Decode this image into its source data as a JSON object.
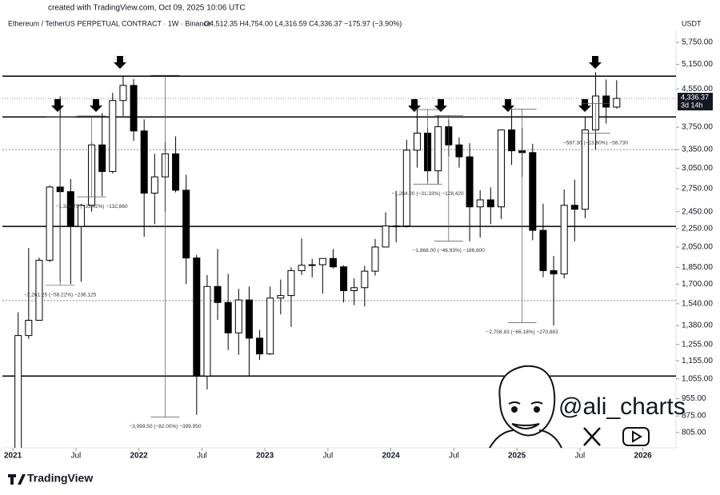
{
  "created": "created with TradingView.com, Oct 09, 2025 10:06 UTC",
  "symbol": "Ethereum / TetherUS PERPETUAL CONTRACT · 1W · Binance",
  "ohlc_header": "O4,512.35 H4,754.00 L4,316.59 C4,336.37 −175.97 (−3.90%)",
  "currency": "USDT",
  "price_tag": "4,336.37",
  "countdown": "3d 14h",
  "handle": "@ali_charts",
  "brand": "TradingView",
  "chart_data": {
    "type": "candlestick",
    "log_scale": true,
    "up_color": "#ffffff",
    "down_color": "#000000",
    "x": [
      "2021-01",
      "2021-02",
      "2021-03",
      "2021-04",
      "2021-05",
      "2021-06",
      "2021-07",
      "2021-08",
      "2021-09",
      "2021-10",
      "2021-11",
      "2021-12",
      "2022-01",
      "2022-02",
      "2022-03",
      "2022-04",
      "2022-05",
      "2022-06",
      "2022-07",
      "2022-08",
      "2022-09",
      "2022-10",
      "2022-11",
      "2022-12",
      "2023-01",
      "2023-02",
      "2023-03",
      "2023-04",
      "2023-05",
      "2023-06",
      "2023-07",
      "2023-08",
      "2023-09",
      "2023-10",
      "2023-11",
      "2023-12",
      "2024-01",
      "2024-02",
      "2024-03",
      "2024-04",
      "2024-05",
      "2024-06",
      "2024-07",
      "2024-08",
      "2024-09",
      "2024-10",
      "2024-11",
      "2024-12",
      "2025-01",
      "2025-02",
      "2025-03",
      "2025-04",
      "2025-05",
      "2025-06",
      "2025-07",
      "2025-08",
      "2025-09",
      "2025-10"
    ],
    "open": [
      737,
      1312,
      1417,
      1918,
      2774,
      2710,
      2275,
      2530,
      3430,
      3000,
      4290,
      4630,
      3680,
      2690,
      2920,
      3280,
      2730,
      1940,
      1070,
      1680,
      1550,
      1330,
      1570,
      1295,
      1196,
      1585,
      1605,
      1820,
      1870,
      1875,
      1935,
      1855,
      1645,
      1670,
      1815,
      2050,
      2280,
      2280,
      3340,
      3640,
      3010,
      3760,
      3430,
      3230,
      2510,
      2600,
      2510,
      3700,
      3330,
      3300,
      2230,
      1820,
      1790,
      2530,
      2480,
      3700,
      4390,
      4150
    ],
    "high": [
      1475,
      2040,
      1943,
      2797,
      4380,
      2890,
      2550,
      3470,
      4030,
      4460,
      4870,
      4780,
      3900,
      3280,
      3480,
      3580,
      2950,
      1970,
      1780,
      2030,
      1790,
      1660,
      1680,
      1350,
      1680,
      1740,
      1850,
      2140,
      1930,
      1930,
      2030,
      1870,
      1750,
      1865,
      2135,
      2440,
      2720,
      3520,
      4100,
      3730,
      3980,
      3890,
      3560,
      3460,
      2730,
      2770,
      3700,
      4110,
      3740,
      3450,
      2550,
      1960,
      2740,
      2880,
      3940,
      4950,
      4770,
      4754
    ],
    "low": [
      714,
      1290,
      1440,
      1900,
      1720,
      1700,
      1720,
      2450,
      2650,
      2970,
      3970,
      3500,
      2160,
      2300,
      2450,
      2700,
      1700,
      880,
      1000,
      1420,
      1220,
      1190,
      1070,
      1160,
      1190,
      1460,
      1370,
      1780,
      1760,
      1620,
      1840,
      1550,
      1530,
      1520,
      1775,
      2050,
      2100,
      2260,
      3060,
      2850,
      2820,
      3240,
      3060,
      2110,
      2150,
      2300,
      2360,
      3100,
      2920,
      2120,
      1760,
      1380,
      1750,
      2110,
      2370,
      3350,
      3820,
      4120
    ],
    "close": [
      1312,
      1417,
      1918,
      2774,
      2710,
      2275,
      2530,
      3430,
      3000,
      4290,
      4630,
      3680,
      2690,
      2920,
      3280,
      2730,
      1940,
      1070,
      1680,
      1550,
      1330,
      1570,
      1295,
      1196,
      1585,
      1605,
      1820,
      1870,
      1875,
      1935,
      1855,
      1645,
      1670,
      1815,
      2050,
      2280,
      2280,
      3340,
      3640,
      3010,
      3760,
      3430,
      3230,
      2510,
      2600,
      2510,
      3700,
      3330,
      3300,
      2230,
      1820,
      1790,
      2530,
      2480,
      3700,
      4390,
      4150,
      4336.37
    ],
    "xlim": [
      "2020-12",
      "2026-04"
    ],
    "xticks": [
      {
        "value": "2021-01",
        "label": "2021"
      },
      {
        "value": "2021-07",
        "label": "Jul"
      },
      {
        "value": "2022-01",
        "label": "2022"
      },
      {
        "value": "2022-07",
        "label": "Jul"
      },
      {
        "value": "2023-01",
        "label": "2023"
      },
      {
        "value": "2023-07",
        "label": "Jul"
      },
      {
        "value": "2024-01",
        "label": "2024"
      },
      {
        "value": "2024-07",
        "label": "Jul"
      },
      {
        "value": "2025-01",
        "label": "2025"
      },
      {
        "value": "2025-07",
        "label": "Jul"
      },
      {
        "value": "2026-01",
        "label": "2026"
      }
    ],
    "ylim": [
      745,
      6110
    ],
    "yticks": [
      {
        "value": 5750,
        "label": "5,750.00"
      },
      {
        "value": 5150,
        "label": "5,150.00"
      },
      {
        "value": 4550,
        "label": "4,550.00"
      },
      {
        "value": 3750,
        "label": "3,750.00"
      },
      {
        "value": 3350,
        "label": "3,350.00"
      },
      {
        "value": 3050,
        "label": "3,050.00"
      },
      {
        "value": 2750,
        "label": "2,750.00"
      },
      {
        "value": 2450,
        "label": "2,450.00"
      },
      {
        "value": 2250,
        "label": "2,250.00"
      },
      {
        "value": 2050,
        "label": "2,050.00"
      },
      {
        "value": 1850,
        "label": "1,850.00"
      },
      {
        "value": 1700,
        "label": "1,700.00"
      },
      {
        "value": 1540,
        "label": "1,540.00"
      },
      {
        "value": 1380,
        "label": "1,380.00"
      },
      {
        "value": 1255,
        "label": "1,255.00"
      },
      {
        "value": 1155,
        "label": "1,155.00"
      },
      {
        "value": 1055,
        "label": "1,055.00"
      },
      {
        "value": 955,
        "label": "955.00"
      },
      {
        "value": 875,
        "label": "875.00"
      },
      {
        "value": 805,
        "label": "805.00"
      }
    ],
    "levels": [
      4850,
      3950,
      2275,
      1070
    ],
    "dotted_levels": [
      3350,
      1565
    ],
    "measures": [
      {
        "x": "2021-05",
        "from": 3950,
        "to": 1690,
        "label": "−2,261.25 (−58.22%) −236,125"
      },
      {
        "x": "2021-08",
        "from": 3970,
        "to": 2640,
        "label": "−1,328.75 (−33.42%) −132,860"
      },
      {
        "x": "2022-03",
        "from": 4870,
        "to": 870,
        "label": "−3,999.50 (−82.00%) −399,950"
      },
      {
        "x": "2024-04",
        "from": 4100,
        "to": 2815,
        "label": "−1,284.20 (−31.33%) −128,420"
      },
      {
        "x": "2024-06",
        "from": 3980,
        "to": 2112,
        "label": "−1,868.00 (−46.93%) −186,800"
      },
      {
        "x": "2025-01",
        "from": 4110,
        "to": 1400,
        "label": "−2,708.83 (−66.18%) −270,883"
      },
      {
        "x": "2025-08",
        "from": 4225,
        "to": 3638,
        "label": "−587.30 (−13.90%) −58,730"
      }
    ]
  }
}
